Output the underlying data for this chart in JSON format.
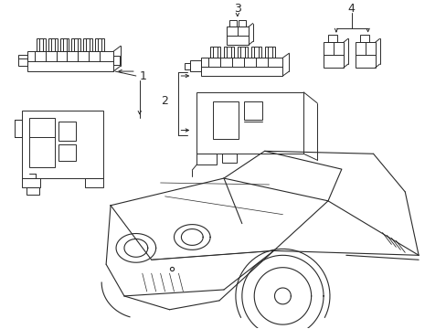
{
  "bg_color": "#ffffff",
  "line_color": "#2a2a2a",
  "fig_width": 4.89,
  "fig_height": 3.6,
  "dpi": 100,
  "comp1_label": "1",
  "comp2_label": "2",
  "comp3_label": "3",
  "comp4_label": "4"
}
